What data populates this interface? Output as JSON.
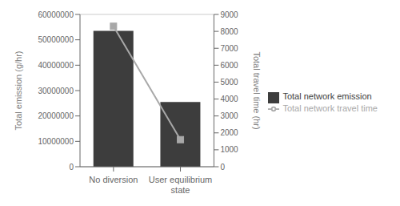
{
  "chart_data": {
    "type": "bar",
    "categories": [
      "No diversion",
      "User equilibrium\nstate"
    ],
    "series": [
      {
        "name": "Total network emission",
        "type": "bar",
        "color": "#3d3d3d",
        "values": [
          53500000,
          25500000
        ]
      },
      {
        "name": "Total network travel time",
        "type": "line",
        "axis": "y2",
        "color": "#a8a8a8",
        "marker": "square",
        "values": [
          8300,
          1600
        ]
      }
    ],
    "ylabel": "Total emission (g/hr)",
    "y2label": "Total travel time (hr)",
    "ylim": [
      0,
      60000000
    ],
    "yticks": [
      0,
      10000000,
      20000000,
      30000000,
      40000000,
      50000000,
      60000000
    ],
    "y2lim": [
      0,
      9000
    ],
    "y2ticks": [
      0,
      1000,
      2000,
      3000,
      4000,
      5000,
      6000,
      7000,
      8000,
      9000
    ],
    "grid": true,
    "legend": "right"
  }
}
